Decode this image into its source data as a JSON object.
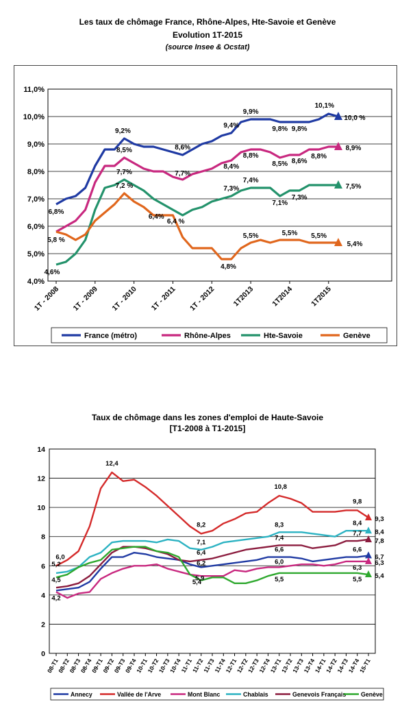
{
  "chart1": {
    "title": "Les taux de chômage France, Rhône-Alpes, Hte-Savoie et Genève",
    "subtitle": "Evolution 1T-2015",
    "source": "(source Insee & Ocstat)"
  },
  "chart2": {
    "title_line1": "Taux de chômage dans les zones d'emploi de Haute-Savoie",
    "title_line2": "[T1-2008 à T1-2015]"
  },
  "chart_data": [
    {
      "type": "line",
      "title": "Les taux de chômage France, Rhône-Alpes, Hte-Savoie et Genève",
      "subtitle": "Evolution 1T-2015",
      "ylim": [
        4.0,
        11.0
      ],
      "yticks": [
        "4,0%",
        "5,0%",
        "6,0%",
        "7,0%",
        "8,0%",
        "9,0%",
        "10,0%",
        "11,0%"
      ],
      "grid": true,
      "legend": "bottom",
      "x_tick_labels": [
        "1T - 2008",
        "1T - 2009",
        "1T - 2010",
        "1T - 2011",
        "1T - 2012",
        "1T2013",
        "1T2014",
        "1T2015"
      ],
      "series": [
        {
          "name": "France (métro)",
          "color": "#1f3aa3",
          "values": [
            6.8,
            7.0,
            7.1,
            7.4,
            8.2,
            8.8,
            8.8,
            9.2,
            9.0,
            8.9,
            8.9,
            8.8,
            8.7,
            8.6,
            8.8,
            9.0,
            9.1,
            9.3,
            9.4,
            9.8,
            9.9,
            9.9,
            9.9,
            9.8,
            9.8,
            9.8,
            9.8,
            9.9,
            10.1,
            10.0
          ]
        },
        {
          "name": "Rhône-Alpes",
          "color": "#c8287f",
          "values": [
            5.8,
            6.0,
            6.2,
            6.6,
            7.6,
            8.2,
            8.2,
            8.5,
            8.3,
            8.1,
            8.0,
            8.0,
            7.8,
            7.7,
            7.9,
            8.0,
            8.1,
            8.3,
            8.4,
            8.7,
            8.8,
            8.8,
            8.7,
            8.5,
            8.6,
            8.6,
            8.8,
            8.8,
            8.9,
            8.9
          ]
        },
        {
          "name": "Hte-Savoie",
          "color": "#23926b",
          "values": [
            4.6,
            4.7,
            5.0,
            5.5,
            6.6,
            7.4,
            7.5,
            7.7,
            7.5,
            7.3,
            7.0,
            6.8,
            6.6,
            6.4,
            6.6,
            6.7,
            6.9,
            7.0,
            7.1,
            7.3,
            7.4,
            7.4,
            7.4,
            7.1,
            7.3,
            7.3,
            7.5,
            7.5,
            7.5,
            7.5
          ]
        },
        {
          "name": "Genève",
          "color": "#e0661c",
          "values": [
            5.8,
            5.7,
            5.5,
            5.7,
            6.2,
            6.5,
            6.8,
            7.2,
            6.9,
            6.7,
            6.4,
            6.4,
            6.4,
            5.6,
            5.2,
            5.2,
            5.2,
            4.8,
            4.8,
            5.2,
            5.4,
            5.5,
            5.4,
            5.5,
            5.5,
            5.5,
            5.4,
            5.4,
            5.4,
            5.4
          ]
        }
      ],
      "annotations": [
        "6,8%",
        "9,2%",
        "8,6%",
        "9,4%",
        "9,9%",
        "9,8%",
        "9,8%",
        "10,1%",
        "10,0 %",
        "5,8 %",
        "8,5%",
        "7,7%",
        "8,4%",
        "8,8%",
        "8,5%",
        "8,6%",
        "8,8%",
        "8,9%",
        "4,6%",
        "7,7%",
        "6,4 %",
        "7,3%",
        "7,4%",
        "7,1%",
        "7,3%",
        "7,5%",
        "7,2 %",
        "6,4%",
        "4,8%",
        "5,5%",
        "5,5%",
        "5,5%",
        "5,4%"
      ]
    },
    {
      "type": "line",
      "title": "Taux de chômage dans les zones d'emploi de Haute-Savoie",
      "subtitle": "[T1-2008 à T1-2015]",
      "ylim": [
        0,
        14
      ],
      "yticks": [
        "0",
        "2",
        "4",
        "6",
        "8",
        "10",
        "12",
        "14"
      ],
      "grid": true,
      "legend": "bottom",
      "x": [
        "08-T1",
        "08-T2",
        "08-T3",
        "08-T4",
        "09-T1",
        "09-T2",
        "09-T3",
        "09-T4",
        "10-T1",
        "10-T2",
        "10-T3",
        "10-T4",
        "11-T1",
        "11-T2",
        "11-T3",
        "11-T4",
        "12-T1",
        "12-T2",
        "12-T3",
        "12-T4",
        "13-T1",
        "13-T2",
        "13-T3",
        "13-T4",
        "14-T1",
        "14-T2",
        "14-T3",
        "14-T4",
        "15-T1"
      ],
      "series": [
        {
          "name": "Annecy",
          "color": "#1f3aa3",
          "values": [
            4.3,
            4.4,
            4.5,
            4.9,
            5.8,
            6.6,
            6.6,
            6.9,
            6.8,
            6.6,
            6.5,
            6.4,
            6.1,
            5.9,
            6.0,
            6.1,
            6.2,
            6.3,
            6.4,
            6.6,
            6.6,
            6.6,
            6.5,
            6.3,
            6.4,
            6.5,
            6.6,
            6.6,
            6.7
          ]
        },
        {
          "name": "Vallée de l'Arve",
          "color": "#d42a2a",
          "values": [
            6.0,
            6.4,
            7.0,
            8.7,
            11.3,
            12.4,
            11.8,
            11.9,
            11.4,
            10.8,
            10.1,
            9.4,
            8.7,
            8.2,
            8.4,
            8.9,
            9.2,
            9.6,
            9.7,
            10.3,
            10.8,
            10.6,
            10.3,
            9.7,
            9.7,
            9.7,
            9.8,
            9.8,
            9.3
          ]
        },
        {
          "name": "Mont Blanc",
          "color": "#c8287f",
          "values": [
            4.2,
            3.8,
            4.1,
            4.2,
            5.1,
            5.5,
            5.8,
            6.0,
            6.0,
            6.1,
            5.8,
            5.6,
            5.4,
            5.3,
            5.3,
            5.3,
            5.7,
            5.6,
            5.8,
            5.9,
            5.9,
            6.0,
            6.1,
            6.1,
            6.0,
            6.1,
            6.3,
            6.3,
            6.3
          ]
        },
        {
          "name": "Chablais",
          "color": "#2bb2c2",
          "values": [
            5.5,
            5.6,
            5.9,
            6.6,
            6.9,
            7.6,
            7.7,
            7.7,
            7.7,
            7.6,
            7.8,
            7.7,
            7.2,
            7.1,
            7.3,
            7.6,
            7.7,
            7.8,
            7.9,
            8.0,
            8.3,
            8.3,
            8.3,
            8.2,
            8.1,
            8.0,
            8.4,
            8.4,
            8.4
          ]
        },
        {
          "name": "Genevois Français",
          "color": "#8b1c3e",
          "values": [
            4.5,
            4.6,
            4.8,
            5.3,
            6.1,
            6.9,
            7.3,
            7.3,
            7.2,
            7.0,
            6.8,
            6.4,
            6.3,
            6.4,
            6.5,
            6.7,
            6.9,
            7.1,
            7.2,
            7.3,
            7.4,
            7.4,
            7.4,
            7.2,
            7.3,
            7.4,
            7.7,
            7.7,
            7.8
          ]
        },
        {
          "name": "Genève",
          "color": "#2ea82e",
          "values": [
            5.2,
            5.4,
            5.9,
            6.2,
            6.4,
            7.1,
            7.2,
            7.3,
            7.3,
            7.0,
            6.9,
            6.6,
            5.4,
            5.0,
            5.2,
            5.2,
            4.8,
            4.8,
            5.0,
            5.3,
            5.5,
            5.5,
            5.5,
            5.5,
            5.5,
            5.5,
            5.5,
            5.5,
            5.4
          ]
        }
      ],
      "annotations": [
        "6,0",
        "5,2",
        "4,5",
        "4,2",
        "12,4",
        "8,2",
        "7,1",
        "6,4",
        "6,2",
        "5,9",
        "5,4",
        "10,8",
        "8,3",
        "7,4",
        "6,6",
        "6,0",
        "5,5",
        "9,8",
        "8,4",
        "7,7",
        "6,6",
        "6,3",
        "5,5",
        "9,3",
        "8,4",
        "7,8",
        "6,7",
        "6,3",
        "5,4"
      ]
    }
  ]
}
